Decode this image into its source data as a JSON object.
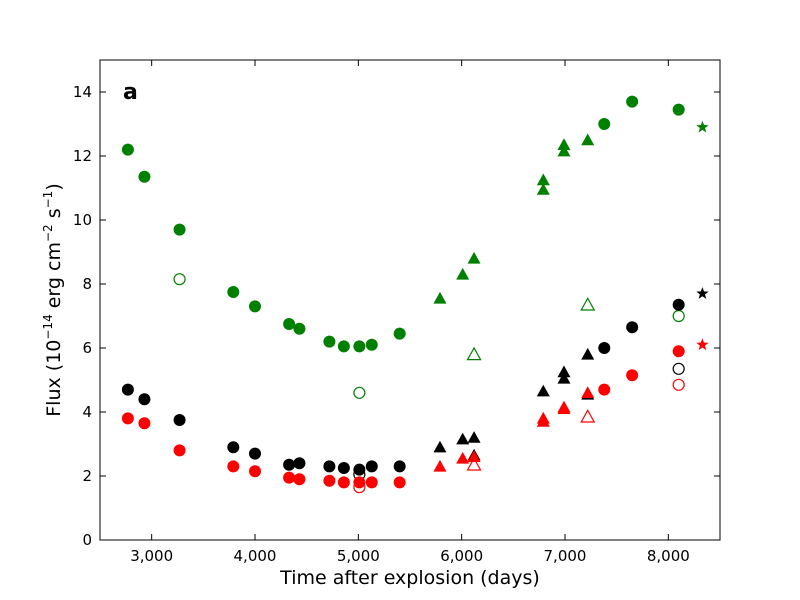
{
  "chart_data": {
    "type": "scatter",
    "panel_label": "a",
    "xlabel": "Time after explosion (days)",
    "ylabel_main": "Flux (10",
    "ylabel_exp": "−14",
    "ylabel_units": " erg cm",
    "ylabel_exp2": "−2",
    "ylabel_s": " s",
    "ylabel_exp3": "−1",
    "ylabel_close": ")",
    "xlim": [
      2500,
      8500
    ],
    "ylim": [
      0,
      15
    ],
    "x_ticks": [
      3000,
      4000,
      5000,
      6000,
      7000,
      8000
    ],
    "x_tick_labels": [
      "3,000",
      "4,000",
      "5,000",
      "6,000",
      "7,000",
      "8,000"
    ],
    "y_ticks": [
      0,
      2,
      4,
      6,
      8,
      10,
      12,
      14
    ],
    "y_tick_labels": [
      "0",
      "2",
      "4",
      "6",
      "8",
      "10",
      "12",
      "14"
    ],
    "colors": {
      "green": "#008000",
      "black": "#000000",
      "red": "#ff0000"
    },
    "series": [
      {
        "name": "green-filled-circles",
        "color": "green",
        "marker": "circle",
        "filled": true,
        "points": [
          [
            2770,
            12.2
          ],
          [
            2930,
            11.35
          ],
          [
            3270,
            9.7
          ],
          [
            3790,
            7.75
          ],
          [
            4000,
            7.3
          ],
          [
            4330,
            6.75
          ],
          [
            4430,
            6.6
          ],
          [
            4720,
            6.2
          ],
          [
            4860,
            6.05
          ],
          [
            5010,
            6.05
          ],
          [
            5130,
            6.1
          ],
          [
            5400,
            6.45
          ],
          [
            8100,
            13.45
          ],
          [
            7650,
            13.7
          ],
          [
            7380,
            13.0
          ]
        ]
      },
      {
        "name": "green-open-circles",
        "color": "green",
        "marker": "circle",
        "filled": false,
        "points": [
          [
            3270,
            8.15
          ],
          [
            5010,
            4.6
          ],
          [
            8100,
            7.0
          ]
        ]
      },
      {
        "name": "green-filled-triangles",
        "color": "green",
        "marker": "triangle",
        "filled": true,
        "points": [
          [
            5790,
            7.55
          ],
          [
            6010,
            8.3
          ],
          [
            6120,
            8.8
          ],
          [
            6790,
            11.25
          ],
          [
            6790,
            10.95
          ],
          [
            6990,
            12.35
          ],
          [
            6990,
            12.15
          ],
          [
            7220,
            12.5
          ]
        ]
      },
      {
        "name": "green-open-triangles",
        "color": "green",
        "marker": "triangle",
        "filled": false,
        "points": [
          [
            6120,
            5.8
          ],
          [
            7220,
            7.35
          ]
        ]
      },
      {
        "name": "green-star",
        "color": "green",
        "marker": "star",
        "filled": true,
        "points": [
          [
            8330,
            12.9
          ]
        ]
      },
      {
        "name": "black-filled-circles",
        "color": "black",
        "marker": "circle",
        "filled": true,
        "points": [
          [
            2770,
            4.7
          ],
          [
            2930,
            4.4
          ],
          [
            3270,
            3.75
          ],
          [
            3790,
            2.9
          ],
          [
            4000,
            2.7
          ],
          [
            4330,
            2.35
          ],
          [
            4430,
            2.4
          ],
          [
            4720,
            2.3
          ],
          [
            4860,
            2.25
          ],
          [
            5010,
            2.2
          ],
          [
            5130,
            2.3
          ],
          [
            5400,
            2.3
          ],
          [
            7380,
            6.0
          ],
          [
            7650,
            6.65
          ],
          [
            8100,
            7.35
          ]
        ]
      },
      {
        "name": "black-open-circles",
        "color": "black",
        "marker": "circle",
        "filled": false,
        "points": [
          [
            5010,
            2.05
          ],
          [
            8100,
            5.35
          ]
        ]
      },
      {
        "name": "black-filled-triangles",
        "color": "black",
        "marker": "triangle",
        "filled": true,
        "points": [
          [
            5790,
            2.9
          ],
          [
            6010,
            3.15
          ],
          [
            6120,
            3.2
          ],
          [
            6120,
            2.65
          ],
          [
            6790,
            4.65
          ],
          [
            6990,
            5.25
          ],
          [
            6990,
            5.05
          ],
          [
            7220,
            5.8
          ],
          [
            7220,
            4.55
          ]
        ]
      },
      {
        "name": "black-star",
        "color": "black",
        "marker": "star",
        "filled": true,
        "points": [
          [
            8330,
            7.7
          ]
        ]
      },
      {
        "name": "red-filled-circles",
        "color": "red",
        "marker": "circle",
        "filled": true,
        "points": [
          [
            2770,
            3.8
          ],
          [
            2930,
            3.65
          ],
          [
            3270,
            2.8
          ],
          [
            3790,
            2.3
          ],
          [
            4000,
            2.15
          ],
          [
            4330,
            1.95
          ],
          [
            4430,
            1.9
          ],
          [
            4720,
            1.85
          ],
          [
            4860,
            1.8
          ],
          [
            5010,
            1.8
          ],
          [
            5130,
            1.8
          ],
          [
            5400,
            1.8
          ],
          [
            7380,
            4.7
          ],
          [
            7650,
            5.15
          ],
          [
            8100,
            5.9
          ]
        ]
      },
      {
        "name": "red-open-circles",
        "color": "red",
        "marker": "circle",
        "filled": false,
        "points": [
          [
            5010,
            1.65
          ],
          [
            8100,
            4.85
          ]
        ]
      },
      {
        "name": "red-filled-triangles",
        "color": "red",
        "marker": "triangle",
        "filled": true,
        "points": [
          [
            5790,
            2.3
          ],
          [
            6010,
            2.55
          ],
          [
            6120,
            2.6
          ],
          [
            6790,
            3.8
          ],
          [
            6790,
            3.7
          ],
          [
            6990,
            4.15
          ],
          [
            6990,
            4.1
          ],
          [
            7220,
            4.6
          ]
        ]
      },
      {
        "name": "red-open-triangles",
        "color": "red",
        "marker": "triangle",
        "filled": false,
        "points": [
          [
            6120,
            2.35
          ],
          [
            7220,
            3.85
          ]
        ]
      },
      {
        "name": "red-star",
        "color": "red",
        "marker": "star",
        "filled": true,
        "points": [
          [
            8330,
            6.1
          ]
        ]
      }
    ]
  }
}
